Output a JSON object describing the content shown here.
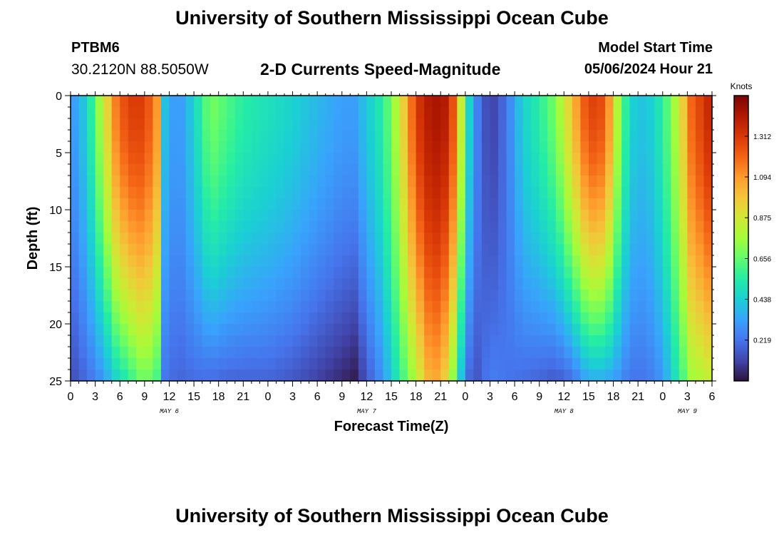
{
  "header": {
    "title": "University of Southern Mississippi Ocean Cube",
    "station": "PTBM6",
    "coords": "30.2120N  88.5050W",
    "subtitle": "2-D Currents Speed-Magnitude",
    "model_start_label": "Model Start Time",
    "model_start_value": "05/06/2024 Hour 21"
  },
  "footer": {
    "title": "University of Southern Mississippi Ocean Cube"
  },
  "chart_data": {
    "type": "heatmap",
    "title": "2-D Currents Speed-Magnitude",
    "xlabel": "Forecast Time(Z)",
    "ylabel": "Depth (ft)",
    "xlim": [
      0,
      78
    ],
    "ylim": [
      25,
      0
    ],
    "x_tick_values": [
      0,
      3,
      6,
      9,
      12,
      15,
      18,
      21,
      24,
      27,
      30,
      33,
      36,
      39,
      42,
      45,
      48,
      51,
      54,
      57,
      60,
      63,
      66,
      69,
      72,
      75,
      78
    ],
    "x_tick_labels": [
      "0",
      "3",
      "6",
      "9",
      "12",
      "15",
      "18",
      "21",
      "0",
      "3",
      "6",
      "9",
      "12",
      "15",
      "18",
      "21",
      "0",
      "3",
      "6",
      "9",
      "12",
      "15",
      "18",
      "21",
      "0",
      "3",
      "6"
    ],
    "date_labels": [
      {
        "hour": 12,
        "label": "MAY 6"
      },
      {
        "hour": 36,
        "label": "MAY 7"
      },
      {
        "hour": 60,
        "label": "MAY 8"
      },
      {
        "hour": 75,
        "label": "MAY 9"
      }
    ],
    "y_tick_values": [
      0,
      5,
      10,
      15,
      20,
      25
    ],
    "y_tick_labels": [
      "0",
      "5",
      "10",
      "15",
      "20",
      "25"
    ],
    "colorbar": {
      "title": "Knots",
      "range": [
        0,
        1.53
      ],
      "tick_values": [
        0.219,
        0.438,
        0.656,
        0.875,
        1.094,
        1.312
      ],
      "tick_labels": [
        "0.219",
        "0.438",
        "0.656",
        "0.875",
        "1.094",
        "1.312"
      ],
      "colors": [
        "#30123b",
        "#4145ab",
        "#4675ed",
        "#39a2fc",
        "#1bcfd4",
        "#24eca6",
        "#61fc6c",
        "#a4fc3b",
        "#d1e834",
        "#f3c63a",
        "#fe9b2d",
        "#f36315",
        "#d93806",
        "#b11901",
        "#7a0403"
      ]
    },
    "speed_profiles": [
      {
        "hour": 0,
        "surface": 0.28,
        "bottom": 0.12
      },
      {
        "hour": 2,
        "surface": 0.45,
        "bottom": 0.2
      },
      {
        "hour": 4,
        "surface": 0.85,
        "bottom": 0.3
      },
      {
        "hour": 5.5,
        "surface": 1.15,
        "bottom": 0.45
      },
      {
        "hour": 7,
        "surface": 1.3,
        "bottom": 0.55
      },
      {
        "hour": 9,
        "surface": 1.3,
        "bottom": 0.7
      },
      {
        "hour": 10.5,
        "surface": 1.1,
        "bottom": 0.6
      },
      {
        "hour": 11.5,
        "surface": 0.4,
        "bottom": 0.22
      },
      {
        "hour": 13,
        "surface": 0.28,
        "bottom": 0.18
      },
      {
        "hour": 15,
        "surface": 0.45,
        "bottom": 0.2
      },
      {
        "hour": 17,
        "surface": 0.7,
        "bottom": 0.2
      },
      {
        "hour": 19,
        "surface": 0.62,
        "bottom": 0.18
      },
      {
        "hour": 21,
        "surface": 0.55,
        "bottom": 0.18
      },
      {
        "hour": 24,
        "surface": 0.5,
        "bottom": 0.18
      },
      {
        "hour": 27,
        "surface": 0.45,
        "bottom": 0.15
      },
      {
        "hour": 30,
        "surface": 0.38,
        "bottom": 0.1
      },
      {
        "hour": 33,
        "surface": 0.32,
        "bottom": 0.05
      },
      {
        "hour": 34.5,
        "surface": 0.32,
        "bottom": 0.02
      },
      {
        "hour": 36,
        "surface": 0.42,
        "bottom": 0.15
      },
      {
        "hour": 38,
        "surface": 0.55,
        "bottom": 0.3
      },
      {
        "hour": 40,
        "surface": 0.85,
        "bottom": 0.55
      },
      {
        "hour": 42,
        "surface": 1.3,
        "bottom": 0.8
      },
      {
        "hour": 44,
        "surface": 1.45,
        "bottom": 1.1
      },
      {
        "hour": 46,
        "surface": 1.4,
        "bottom": 0.9
      },
      {
        "hour": 47,
        "surface": 1.1,
        "bottom": 0.55
      },
      {
        "hour": 48,
        "surface": 0.6,
        "bottom": 0.25
      },
      {
        "hour": 49,
        "surface": 0.3,
        "bottom": 0.12
      },
      {
        "hour": 51,
        "surface": 0.08,
        "bottom": 0.25
      },
      {
        "hour": 53,
        "surface": 0.22,
        "bottom": 0.22
      },
      {
        "hour": 55,
        "surface": 0.45,
        "bottom": 0.2
      },
      {
        "hour": 57,
        "surface": 0.55,
        "bottom": 0.18
      },
      {
        "hour": 59,
        "surface": 0.7,
        "bottom": 0.15
      },
      {
        "hour": 61,
        "surface": 1.0,
        "bottom": 0.2
      },
      {
        "hour": 63,
        "surface": 1.3,
        "bottom": 0.35
      },
      {
        "hour": 65,
        "surface": 1.25,
        "bottom": 0.35
      },
      {
        "hour": 66.5,
        "surface": 0.8,
        "bottom": 0.3
      },
      {
        "hour": 68,
        "surface": 0.45,
        "bottom": 0.22
      },
      {
        "hour": 70,
        "surface": 0.4,
        "bottom": 0.22
      },
      {
        "hour": 72,
        "surface": 0.55,
        "bottom": 0.3
      },
      {
        "hour": 74,
        "surface": 0.85,
        "bottom": 0.55
      },
      {
        "hour": 75.5,
        "surface": 1.2,
        "bottom": 0.75
      },
      {
        "hour": 78,
        "surface": 1.4,
        "bottom": 0.85
      }
    ]
  }
}
